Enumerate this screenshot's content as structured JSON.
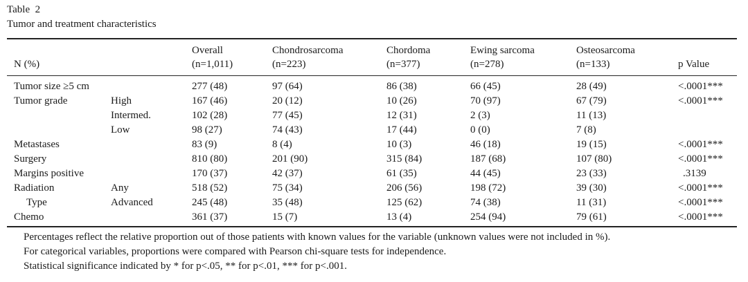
{
  "table_label": "Table  2",
  "table_caption": "Tumor and treatment characteristics",
  "header": {
    "n_label": "N (%)",
    "columns": [
      {
        "name": "Overall",
        "n": "(n=1,011)"
      },
      {
        "name": "Chondrosarcoma",
        "n": "(n=223)"
      },
      {
        "name": "Chordoma",
        "n": "(n=377)"
      },
      {
        "name": "Ewing sarcoma",
        "n": "(n=278)"
      },
      {
        "name": "Osteosarcoma",
        "n": "(n=133)"
      }
    ],
    "pvalue_label": "p Value"
  },
  "rows": [
    {
      "label": "Tumor size ≥5 cm",
      "sub": "",
      "values": [
        "277 (48)",
        "97 (64)",
        "86 (38)",
        "66 (45)",
        "28 (49)"
      ],
      "p": "<.0001***"
    },
    {
      "label": "Tumor grade",
      "sub": "High",
      "values": [
        "167 (46)",
        "20 (12)",
        "10 (26)",
        "70 (97)",
        "67 (79)"
      ],
      "p": "<.0001***"
    },
    {
      "label": "",
      "sub": "Intermed.",
      "values": [
        "102 (28)",
        "77 (45)",
        "12 (31)",
        "2 (3)",
        "11 (13)"
      ],
      "p": ""
    },
    {
      "label": "",
      "sub": "Low",
      "values": [
        "98 (27)",
        "74 (43)",
        "17 (44)",
        "0 (0)",
        "7 (8)"
      ],
      "p": ""
    },
    {
      "label": "Metastases",
      "sub": "",
      "values": [
        "83 (9)",
        "8 (4)",
        "10 (3)",
        "46 (18)",
        "19 (15)"
      ],
      "p": "<.0001***"
    },
    {
      "label": "Surgery",
      "sub": "",
      "values": [
        "810 (80)",
        "201 (90)",
        "315 (84)",
        "187 (68)",
        "107 (80)"
      ],
      "p": "<.0001***"
    },
    {
      "label": "Margins positive",
      "sub": "",
      "values": [
        "170 (37)",
        "42 (37)",
        "61 (35)",
        "44 (45)",
        "23 (33)"
      ],
      "p": ".3139"
    },
    {
      "label": "Radiation",
      "sub": "Any",
      "values": [
        "518 (52)",
        "75 (34)",
        "206 (56)",
        "198 (72)",
        "39 (30)"
      ],
      "p": "<.0001***"
    },
    {
      "label": "Type",
      "sub": "Advanced",
      "values": [
        "245 (48)",
        "35 (48)",
        "125 (62)",
        "74 (38)",
        "11 (31)"
      ],
      "p": "<.0001***"
    },
    {
      "label": "Chemo",
      "sub": "",
      "values": [
        "361 (37)",
        "15 (7)",
        "13 (4)",
        "254 (94)",
        "79 (61)"
      ],
      "p": "<.0001***"
    }
  ],
  "notes": [
    "Percentages reflect the relative proportion out of those patients with known values for the variable (unknown values were not included in %).",
    "For categorical variables, proportions were compared with Pearson chi-square tests for independence.",
    "Statistical significance indicated by * for p<.05, ** for p<.01, *** for p<.001."
  ]
}
